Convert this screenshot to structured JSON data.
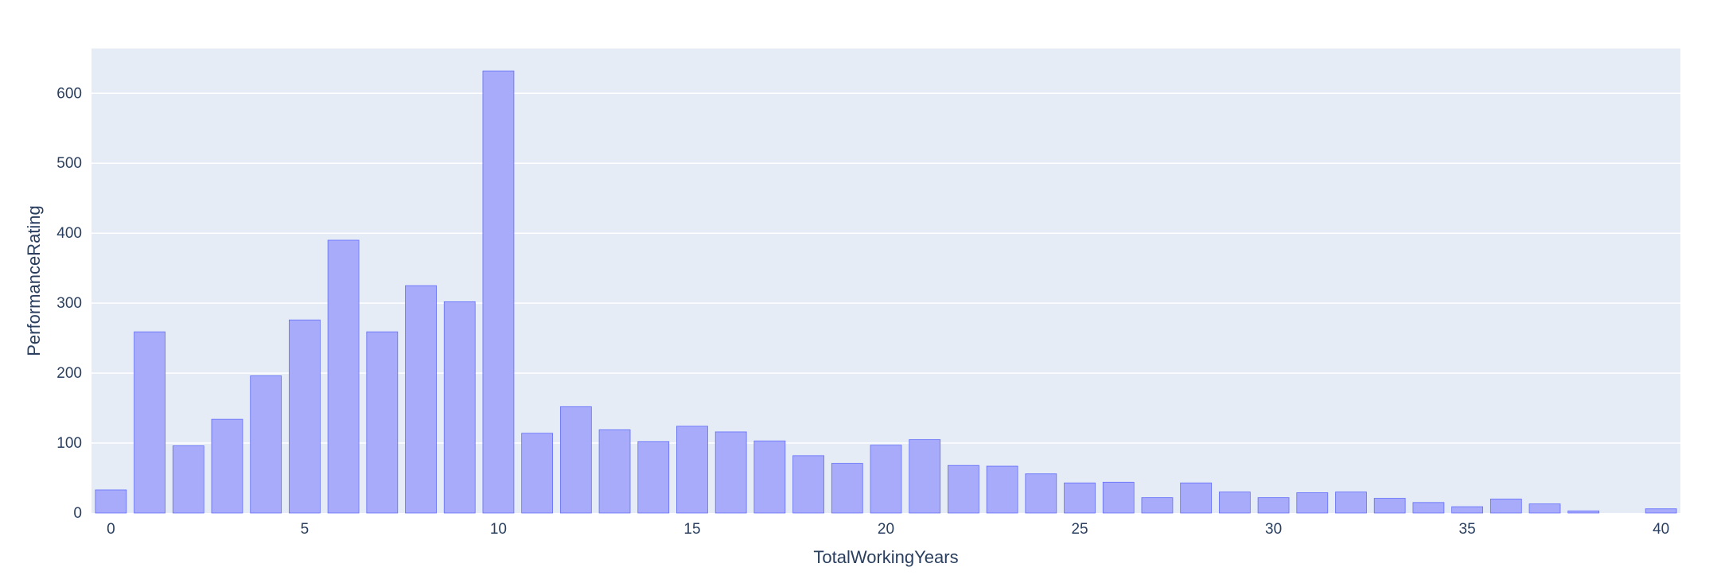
{
  "chart_data": {
    "type": "bar",
    "title": "",
    "xlabel": "TotalWorkingYears",
    "ylabel": "PerformanceRating",
    "x": [
      0,
      1,
      2,
      3,
      4,
      5,
      6,
      7,
      8,
      9,
      10,
      11,
      12,
      13,
      14,
      15,
      16,
      17,
      18,
      19,
      20,
      21,
      22,
      23,
      24,
      25,
      26,
      27,
      28,
      29,
      30,
      31,
      32,
      33,
      34,
      35,
      36,
      37,
      38,
      39,
      40
    ],
    "values": [
      33,
      259,
      96,
      134,
      196,
      276,
      390,
      259,
      325,
      302,
      632,
      114,
      152,
      119,
      102,
      124,
      116,
      103,
      82,
      71,
      97,
      105,
      68,
      67,
      56,
      43,
      44,
      22,
      43,
      30,
      22,
      29,
      30,
      21,
      15,
      9,
      20,
      13,
      3,
      0,
      6
    ],
    "xlim": [
      -0.5,
      40.5
    ],
    "ylim": [
      0,
      664
    ],
    "x_ticks": [
      0,
      5,
      10,
      15,
      20,
      25,
      30,
      35,
      40
    ],
    "y_ticks": [
      0,
      100,
      200,
      300,
      400,
      500,
      600
    ],
    "grid": true,
    "bar_color": "#636efa",
    "bar_fill": "#a7abfa",
    "plot_bg": "#e5ecf6",
    "grid_color": "#ffffff",
    "text_color": "#2a3f5f"
  }
}
